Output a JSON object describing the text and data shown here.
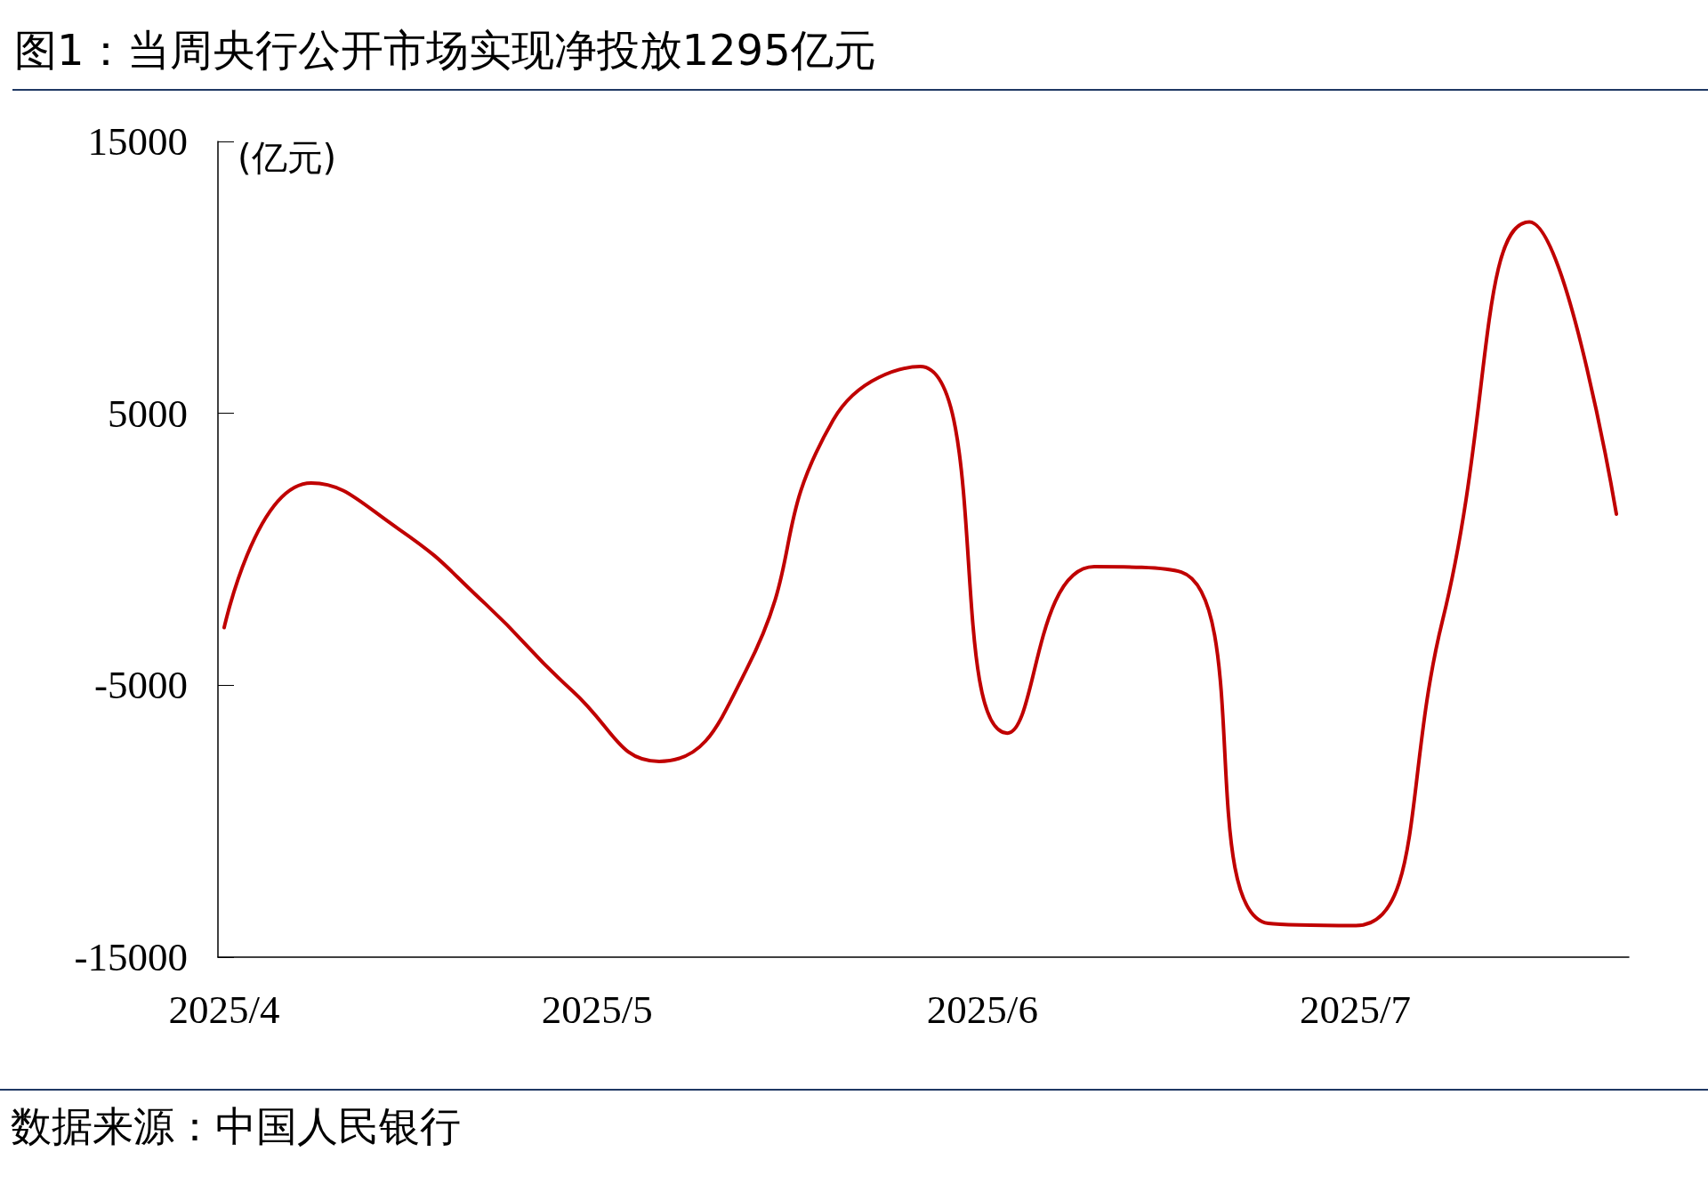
{
  "chart_data": {
    "type": "line",
    "title": "图1：当周央行公开市场实现净投放1295亿元",
    "ylabel": "(亿元)",
    "annotations": [
      "数据来源：中国人民银行"
    ],
    "x": [
      "2025-04-01",
      "2025-04-08",
      "2025-04-15",
      "2025-04-22",
      "2025-04-29",
      "2025-05-06",
      "2025-05-13",
      "2025-05-20",
      "2025-05-27",
      "2025-06-03",
      "2025-06-10",
      "2025-06-17",
      "2025-06-24",
      "2025-07-01",
      "2025-07-08",
      "2025-07-15",
      "2025-07-22"
    ],
    "series": [
      {
        "color": "#c00000",
        "values": [
          -2880,
          2440,
          760,
          -2000,
          -5200,
          -7800,
          -4440,
          4760,
          6720,
          -6760,
          -640,
          -840,
          -13760,
          -13840,
          -2640,
          12040,
          1295
        ]
      }
    ],
    "xlim": [
      "2025-03-31T12:00",
      "2025-07-23"
    ],
    "xticks": [
      {
        "value": "2025-04-01",
        "label": "2025/4"
      },
      {
        "value": "2025-05-01",
        "label": "2025/5"
      },
      {
        "value": "2025-06-01",
        "label": "2025/6"
      },
      {
        "value": "2025-07-01",
        "label": "2025/7"
      }
    ],
    "ylim": [
      -15000,
      15000
    ],
    "yticks": [
      -15000,
      -5000,
      5000,
      15000
    ],
    "grid": false,
    "marker": "none",
    "line_style": "solid"
  }
}
